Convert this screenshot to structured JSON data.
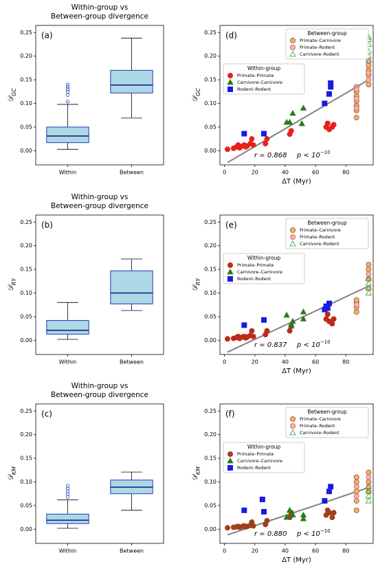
{
  "chart_data": [
    {
      "type": "box",
      "title": [
        "Within-group vs",
        "Between-group divergence"
      ],
      "panel_label": "(a)",
      "ylabel": "𝒟",
      "ylabel_sub": "GC",
      "categories": [
        "Within",
        "Between"
      ],
      "color": "#add8e6",
      "edgecolor": "#2536b8",
      "boxes": [
        {
          "whislo": 0.003,
          "q1": 0.017,
          "med": 0.031,
          "q3": 0.05,
          "whishi": 0.098,
          "fliers": [
            0.104,
            0.118,
            0.125,
            0.13,
            0.135,
            0.14
          ]
        },
        {
          "whislo": 0.069,
          "q1": 0.122,
          "med": 0.139,
          "q3": 0.17,
          "whishi": 0.238,
          "fliers": []
        }
      ],
      "ylim": [
        -0.03,
        0.265
      ],
      "yticks": [
        {
          "value": 0,
          "label": "0.00"
        },
        {
          "value": 0.05,
          "label": "0.05"
        },
        {
          "value": 0.1,
          "label": "0.10"
        },
        {
          "value": 0.15,
          "label": "0.15"
        },
        {
          "value": 0.2,
          "label": "0.20"
        },
        {
          "value": 0.25,
          "label": "0.25"
        }
      ]
    },
    {
      "type": "box",
      "title": [
        "Within-group vs",
        "Between-group divergence"
      ],
      "panel_label": "(b)",
      "ylabel": "𝒟",
      "ylabel_sub": "RY",
      "categories": [
        "Within",
        "Between"
      ],
      "color": "#add8e6",
      "edgecolor": "#2536b8",
      "boxes": [
        {
          "whislo": 0.002,
          "q1": 0.013,
          "med": 0.021,
          "q3": 0.042,
          "whishi": 0.08,
          "fliers": []
        },
        {
          "whislo": 0.063,
          "q1": 0.077,
          "med": 0.1,
          "q3": 0.147,
          "whishi": 0.172,
          "fliers": []
        }
      ],
      "ylim": [
        -0.03,
        0.265
      ],
      "yticks": [
        {
          "value": 0,
          "label": "0.00"
        },
        {
          "value": 0.05,
          "label": "0.05"
        },
        {
          "value": 0.1,
          "label": "0.10"
        },
        {
          "value": 0.15,
          "label": "0.15"
        },
        {
          "value": 0.2,
          "label": "0.20"
        },
        {
          "value": 0.25,
          "label": "0.25"
        }
      ]
    },
    {
      "type": "box",
      "title": [
        "Within-group vs",
        "Between-group divergence"
      ],
      "panel_label": "(c)",
      "ylabel": "𝒟",
      "ylabel_sub": "KM",
      "categories": [
        "Within",
        "Between"
      ],
      "color": "#add8e6",
      "edgecolor": "#2536b8",
      "boxes": [
        {
          "whislo": 0.002,
          "q1": 0.012,
          "med": 0.019,
          "q3": 0.032,
          "whishi": 0.062,
          "fliers": [
            0.068,
            0.074,
            0.08,
            0.086,
            0.092
          ]
        },
        {
          "whislo": 0.04,
          "q1": 0.075,
          "med": 0.089,
          "q3": 0.104,
          "whishi": 0.121,
          "fliers": []
        }
      ],
      "ylim": [
        -0.03,
        0.265
      ],
      "yticks": [
        {
          "value": 0,
          "label": "0.00"
        },
        {
          "value": 0.05,
          "label": "0.05"
        },
        {
          "value": 0.1,
          "label": "0.10"
        },
        {
          "value": 0.15,
          "label": "0.15"
        },
        {
          "value": 0.2,
          "label": "0.20"
        },
        {
          "value": 0.25,
          "label": "0.25"
        }
      ]
    },
    {
      "type": "scatter",
      "panel_label": "(d)",
      "ylabel": "𝒟",
      "ylabel_sub": "GC",
      "xlabel": "ΔT (Myr)",
      "r_text": "r = 0.868",
      "p_text": "p < 10",
      "p_exp": "−10",
      "xlim": [
        -3,
        98
      ],
      "xticks": [
        0,
        20,
        40,
        60,
        80
      ],
      "ylim": [
        -0.03,
        0.265
      ],
      "yticks": [
        {
          "value": 0,
          "label": "0.00"
        },
        {
          "value": 0.05,
          "label": "0.05"
        },
        {
          "value": 0.1,
          "label": "0.10"
        },
        {
          "value": 0.15,
          "label": "0.15"
        },
        {
          "value": 0.2,
          "label": "0.20"
        },
        {
          "value": 0.25,
          "label": "0.25"
        }
      ],
      "fit": {
        "x": [
          2,
          94
        ],
        "y": [
          -0.025,
          0.148
        ],
        "color": "#808080"
      },
      "legend_groups": [
        {
          "title": "Within-group",
          "series": [
            {
              "name": "Primate–Primate",
              "color": "#e8201a",
              "edgecolor": "#e8201a",
              "marker": "circle",
              "x": [
                2,
                6,
                8,
                9,
                10,
                12,
                13,
                14,
                15,
                17,
                18,
                19,
                27,
                28,
                43,
                44,
                67,
                68,
                69,
                71,
                72
              ],
              "y": [
                0.003,
                0.005,
                0.008,
                0.012,
                0.006,
                0.01,
                0.012,
                0.008,
                0.01,
                0.015,
                0.025,
                0.012,
                0.015,
                0.025,
                0.035,
                0.042,
                0.05,
                0.058,
                0.045,
                0.05,
                0.055
              ]
            },
            {
              "name": "Carnivore–Carnivore",
              "color": "#2a7a1a",
              "edgecolor": "#2a7a1a",
              "marker": "triangle",
              "x": [
                41,
                43,
                45,
                51,
                52
              ],
              "y": [
                0.06,
                0.06,
                0.079,
                0.057,
                0.09
              ]
            },
            {
              "name": "Rodent–Rodent",
              "color": "#1a1ae0",
              "edgecolor": "#1a1ae0",
              "marker": "square",
              "x": [
                13,
                26,
                66,
                69,
                70,
                70
              ],
              "y": [
                0.036,
                0.036,
                0.1,
                0.12,
                0.135,
                0.143
              ]
            }
          ]
        },
        {
          "title": "Between-group",
          "series": [
            {
              "name": "Primate–Carnivore",
              "color": "#f0b070",
              "edgecolor": "#a05020",
              "marker": "circle",
              "x": [
                87,
                87,
                87,
                87,
                87,
                87,
                87,
                95,
                95,
                95,
                95
              ],
              "y": [
                0.07,
                0.085,
                0.095,
                0.105,
                0.115,
                0.125,
                0.135,
                0.14,
                0.16,
                0.17,
                0.18
              ]
            },
            {
              "name": "Primate–Rodent",
              "color": "#f8b0b0",
              "edgecolor": "#c06060",
              "marker": "circle",
              "x": [
                87,
                87,
                87,
                95,
                95,
                95
              ],
              "y": [
                0.09,
                0.11,
                0.13,
                0.15,
                0.165,
                0.19
              ]
            },
            {
              "name": "Carnivore–Rodent",
              "color": "#2ca02c",
              "edgecolor": "#2ca02c",
              "marker": "open-triangle",
              "x": [
                95,
                95,
                95,
                95,
                95,
                95
              ],
              "y": [
                0.19,
                0.2,
                0.21,
                0.225,
                0.235,
                0.24
              ]
            }
          ]
        }
      ]
    },
    {
      "type": "scatter",
      "panel_label": "(e)",
      "ylabel": "𝒟",
      "ylabel_sub": "RY",
      "xlabel": "ΔT (Myr)",
      "r_text": "r = 0.837",
      "p_text": "p < 10",
      "p_exp": "−10",
      "xlim": [
        -3,
        98
      ],
      "xticks": [
        0,
        20,
        40,
        60,
        80
      ],
      "ylim": [
        -0.03,
        0.265
      ],
      "yticks": [
        {
          "value": 0,
          "label": "0.00"
        },
        {
          "value": 0.05,
          "label": "0.05"
        },
        {
          "value": 0.1,
          "label": "0.10"
        },
        {
          "value": 0.15,
          "label": "0.15"
        },
        {
          "value": 0.2,
          "label": "0.20"
        },
        {
          "value": 0.25,
          "label": "0.25"
        }
      ],
      "fit": {
        "x": [
          2,
          94
        ],
        "y": [
          -0.025,
          0.113
        ],
        "color": "#808080"
      },
      "legend_groups": [
        {
          "title": "Within-group",
          "series": [
            {
              "name": "Primate–Primate",
              "color": "#c0281a",
              "edgecolor": "#c0281a",
              "marker": "circle",
              "x": [
                2,
                6,
                8,
                9,
                10,
                12,
                13,
                14,
                15,
                17,
                18,
                19,
                27,
                28,
                43,
                44,
                67,
                68,
                69,
                71,
                72
              ],
              "y": [
                0.003,
                0.004,
                0.006,
                0.008,
                0.004,
                0.007,
                0.008,
                0.005,
                0.007,
                0.01,
                0.02,
                0.008,
                0.012,
                0.02,
                0.02,
                0.03,
                0.045,
                0.055,
                0.04,
                0.035,
                0.045
              ]
            },
            {
              "name": "Carnivore–Carnivore",
              "color": "#2a7a1a",
              "edgecolor": "#2a7a1a",
              "marker": "triangle",
              "x": [
                41,
                44,
                45,
                52,
                52
              ],
              "y": [
                0.053,
                0.03,
                0.04,
                0.045,
                0.06
              ]
            },
            {
              "name": "Rodent–Rodent",
              "color": "#1a1ae0",
              "edgecolor": "#1a1ae0",
              "marker": "square",
              "x": [
                13,
                26,
                66,
                67,
                68,
                69
              ],
              "y": [
                0.032,
                0.043,
                0.065,
                0.072,
                0.068,
                0.078
              ]
            }
          ]
        },
        {
          "title": "Between-group",
          "series": [
            {
              "name": "Primate–Carnivore",
              "color": "#f0b070",
              "edgecolor": "#a05020",
              "marker": "circle",
              "x": [
                87,
                87,
                87,
                87,
                95,
                95,
                95
              ],
              "y": [
                0.06,
                0.07,
                0.08,
                0.085,
                0.13,
                0.15,
                0.16
              ]
            },
            {
              "name": "Primate–Rodent",
              "color": "#f8b0b0",
              "edgecolor": "#c06060",
              "marker": "circle",
              "x": [
                87,
                95,
                95
              ],
              "y": [
                0.075,
                0.11,
                0.14
              ]
            },
            {
              "name": "Carnivore–Rodent",
              "color": "#2ca02c",
              "edgecolor": "#2ca02c",
              "marker": "open-triangle",
              "x": [
                95,
                95,
                95,
                95
              ],
              "y": [
                0.1,
                0.11,
                0.12,
                0.13
              ]
            }
          ]
        }
      ]
    },
    {
      "type": "scatter",
      "panel_label": "(f)",
      "ylabel": "𝒟",
      "ylabel_sub": "KM",
      "xlabel": "ΔT (Myr)",
      "r_text": "r = 0.880",
      "p_text": "p < 10",
      "p_exp": "−10",
      "xlim": [
        -3,
        98
      ],
      "xticks": [
        0,
        20,
        40,
        60,
        80
      ],
      "ylim": [
        -0.03,
        0.265
      ],
      "yticks": [
        {
          "value": 0,
          "label": "0.00"
        },
        {
          "value": 0.05,
          "label": "0.05"
        },
        {
          "value": 0.1,
          "label": "0.10"
        },
        {
          "value": 0.15,
          "label": "0.15"
        },
        {
          "value": 0.2,
          "label": "0.20"
        },
        {
          "value": 0.25,
          "label": "0.25"
        }
      ],
      "fit": {
        "x": [
          2,
          94
        ],
        "y": [
          -0.012,
          0.087
        ],
        "color": "#808080"
      },
      "legend_groups": [
        {
          "title": "Within-group",
          "series": [
            {
              "name": "Primate–Primate",
              "color": "#a0401f",
              "edgecolor": "#a0401f",
              "marker": "circle",
              "x": [
                2,
                6,
                8,
                9,
                10,
                12,
                13,
                14,
                15,
                17,
                18,
                19,
                27,
                28,
                43,
                44,
                67,
                68,
                69,
                71,
                72
              ],
              "y": [
                0.003,
                0.004,
                0.005,
                0.006,
                0.004,
                0.006,
                0.007,
                0.005,
                0.006,
                0.008,
                0.015,
                0.007,
                0.01,
                0.018,
                0.025,
                0.035,
                0.03,
                0.04,
                0.035,
                0.025,
                0.035
              ]
            },
            {
              "name": "Carnivore–Carnivore",
              "color": "#2a7a1a",
              "edgecolor": "#2a7a1a",
              "marker": "triangle",
              "x": [
                41,
                43,
                45,
                52,
                52
              ],
              "y": [
                0.025,
                0.04,
                0.03,
                0.022,
                0.03
              ]
            },
            {
              "name": "Rodent–Rodent",
              "color": "#1a1ae0",
              "edgecolor": "#1a1ae0",
              "marker": "square",
              "x": [
                13,
                25,
                26,
                66,
                69,
                70
              ],
              "y": [
                0.04,
                0.063,
                0.037,
                0.06,
                0.08,
                0.09
              ]
            }
          ]
        },
        {
          "title": "Between-group",
          "series": [
            {
              "name": "Primate–Carnivore",
              "color": "#f0b070",
              "edgecolor": "#a05020",
              "marker": "circle",
              "x": [
                87,
                87,
                87,
                87,
                87,
                95,
                95,
                95
              ],
              "y": [
                0.04,
                0.06,
                0.08,
                0.1,
                0.11,
                0.08,
                0.1,
                0.12
              ]
            },
            {
              "name": "Primate–Rodent",
              "color": "#f8b0b0",
              "edgecolor": "#c06060",
              "marker": "circle",
              "x": [
                87,
                87,
                95,
                95
              ],
              "y": [
                0.07,
                0.09,
                0.09,
                0.11
              ]
            },
            {
              "name": "Carnivore–Rodent",
              "color": "#2ca02c",
              "edgecolor": "#2ca02c",
              "marker": "open-triangle",
              "x": [
                95,
                95,
                95,
                95
              ],
              "y": [
                0.06,
                0.07,
                0.08,
                0.09
              ]
            }
          ]
        }
      ]
    }
  ]
}
